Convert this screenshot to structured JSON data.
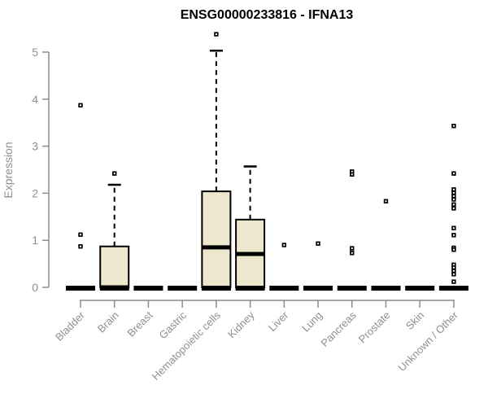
{
  "colors": {
    "background": "#ffffff",
    "box_fill": "#ECE7CD",
    "box_border": "#000000",
    "median": "#000000",
    "zero_bar": "#000000",
    "outlier": "#000000",
    "axis_line": "#8C8C8C",
    "tick_text": "#8F8F8F",
    "title_text": "#000000"
  },
  "chart_data": {
    "type": "boxplot",
    "title": "ENSG00000233816 - IFNA13",
    "ylabel": "Expression",
    "xlabel": "",
    "ylim": [
      0,
      5.4
    ],
    "yticks": [
      0,
      1,
      2,
      3,
      4,
      5
    ],
    "grid": false,
    "legend": null,
    "categories": [
      "Bladder",
      "Brain",
      "Breast",
      "Gastric",
      "Hematopoietic cells",
      "Kidney",
      "Liver",
      "Lung",
      "Pancreas",
      "Prostate",
      "Skin",
      "Unknown / Other"
    ],
    "series": [
      {
        "category": "Bladder",
        "box_visible": false,
        "q1": 0,
        "median": 0,
        "q3": 0,
        "whisker_low": 0,
        "whisker_high": 0,
        "outliers": [
          3.87,
          1.12,
          0.87
        ]
      },
      {
        "category": "Brain",
        "box_visible": true,
        "q1": 0,
        "median": 0,
        "q3": 0.87,
        "whisker_low": 0,
        "whisker_high": 2.18,
        "outliers": [
          2.42
        ]
      },
      {
        "category": "Breast",
        "box_visible": false,
        "q1": 0,
        "median": 0,
        "q3": 0,
        "whisker_low": 0,
        "whisker_high": 0,
        "outliers": []
      },
      {
        "category": "Gastric",
        "box_visible": false,
        "q1": 0,
        "median": 0,
        "q3": 0,
        "whisker_low": 0,
        "whisker_high": 0,
        "outliers": []
      },
      {
        "category": "Hematopoietic cells",
        "box_visible": true,
        "q1": 0,
        "median": 0.85,
        "q3": 2.04,
        "whisker_low": 0,
        "whisker_high": 5.03,
        "outliers": [
          5.38
        ]
      },
      {
        "category": "Kidney",
        "box_visible": true,
        "q1": 0,
        "median": 0.71,
        "q3": 1.44,
        "whisker_low": 0,
        "whisker_high": 2.57,
        "outliers": []
      },
      {
        "category": "Liver",
        "box_visible": false,
        "q1": 0,
        "median": 0,
        "q3": 0,
        "whisker_low": 0,
        "whisker_high": 0,
        "outliers": [
          0.9
        ]
      },
      {
        "category": "Lung",
        "box_visible": false,
        "q1": 0,
        "median": 0,
        "q3": 0,
        "whisker_low": 0,
        "whisker_high": 0,
        "outliers": [
          0.93
        ]
      },
      {
        "category": "Pancreas",
        "box_visible": false,
        "q1": 0,
        "median": 0,
        "q3": 0,
        "whisker_low": 0,
        "whisker_high": 0,
        "outliers": [
          2.46,
          2.4,
          0.83,
          0.73
        ]
      },
      {
        "category": "Prostate",
        "box_visible": false,
        "q1": 0,
        "median": 0,
        "q3": 0,
        "whisker_low": 0,
        "whisker_high": 0,
        "outliers": [
          1.83
        ]
      },
      {
        "category": "Skin",
        "box_visible": false,
        "q1": 0,
        "median": 0,
        "q3": 0,
        "whisker_low": 0,
        "whisker_high": 0,
        "outliers": []
      },
      {
        "category": "Unknown / Other",
        "box_visible": false,
        "q1": 0,
        "median": 0,
        "q3": 0,
        "whisker_low": 0,
        "whisker_high": 0,
        "outliers": [
          3.43,
          2.42,
          2.08,
          2.01,
          1.94,
          1.87,
          1.76,
          1.68,
          1.26,
          1.11,
          0.84,
          0.8,
          0.48,
          0.42,
          0.35,
          0.28,
          0.12
        ]
      }
    ]
  }
}
